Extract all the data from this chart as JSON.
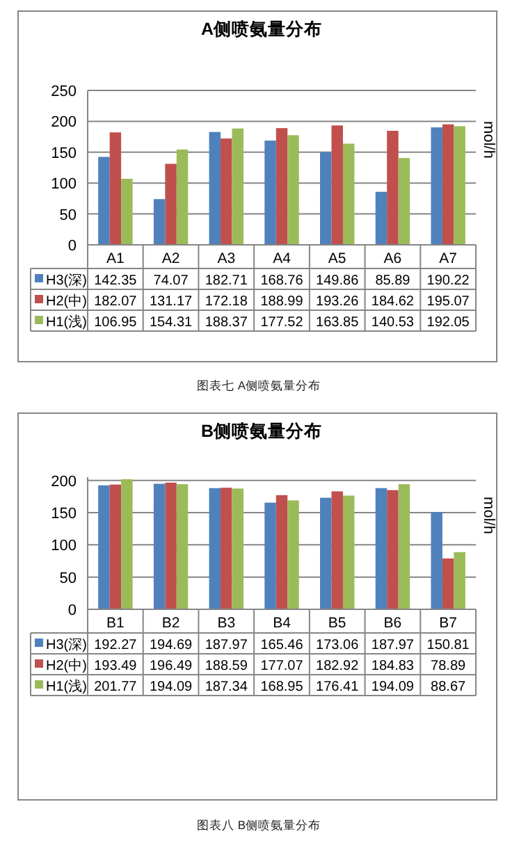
{
  "chart_data": [
    {
      "type": "bar",
      "title": "A侧喷氨量分布",
      "ylabel": "mol/h",
      "categories": [
        "A1",
        "A2",
        "A3",
        "A4",
        "A5",
        "A6",
        "A7"
      ],
      "series": [
        {
          "name": "H3(深)",
          "color": "#4f81bd",
          "values": [
            142.35,
            74.07,
            182.71,
            168.76,
            149.86,
            85.89,
            190.22
          ]
        },
        {
          "name": "H2(中)",
          "color": "#c0504d",
          "values": [
            182.07,
            131.17,
            172.18,
            188.99,
            193.26,
            184.62,
            195.07
          ]
        },
        {
          "name": "H1(浅)",
          "color": "#9bbb59",
          "values": [
            106.95,
            154.31,
            188.37,
            177.52,
            163.85,
            140.53,
            192.05
          ]
        }
      ],
      "ylim": [
        0,
        250
      ],
      "yticks": [
        0,
        50,
        100,
        150,
        200,
        250
      ],
      "grid": "y",
      "legend": "bottom",
      "data_labels": true,
      "annotations": [
        "图表七 A侧喷氨量分布"
      ]
    },
    {
      "type": "bar",
      "title": "B侧喷氨量分布",
      "ylabel": "mol/h",
      "categories": [
        "B1",
        "B2",
        "B3",
        "B4",
        "B5",
        "B6",
        "B7"
      ],
      "series": [
        {
          "name": "H3(深)",
          "color": "#4f81bd",
          "values": [
            192.27,
            194.69,
            187.97,
            165.46,
            173.06,
            187.97,
            150.81
          ]
        },
        {
          "name": "H2(中)",
          "color": "#c0504d",
          "values": [
            193.49,
            196.49,
            188.59,
            177.07,
            182.92,
            184.83,
            78.89
          ]
        },
        {
          "name": "H1(浅)",
          "color": "#9bbb59",
          "values": [
            201.77,
            194.09,
            187.34,
            168.95,
            176.41,
            194.09,
            88.67
          ]
        }
      ],
      "ylim": [
        0,
        205
      ],
      "yticks": [
        0,
        50,
        100,
        150,
        200
      ],
      "grid": "y",
      "legend": "bottom",
      "data_labels": true,
      "annotations": [
        "图表八 B侧喷氨量分布"
      ]
    }
  ]
}
